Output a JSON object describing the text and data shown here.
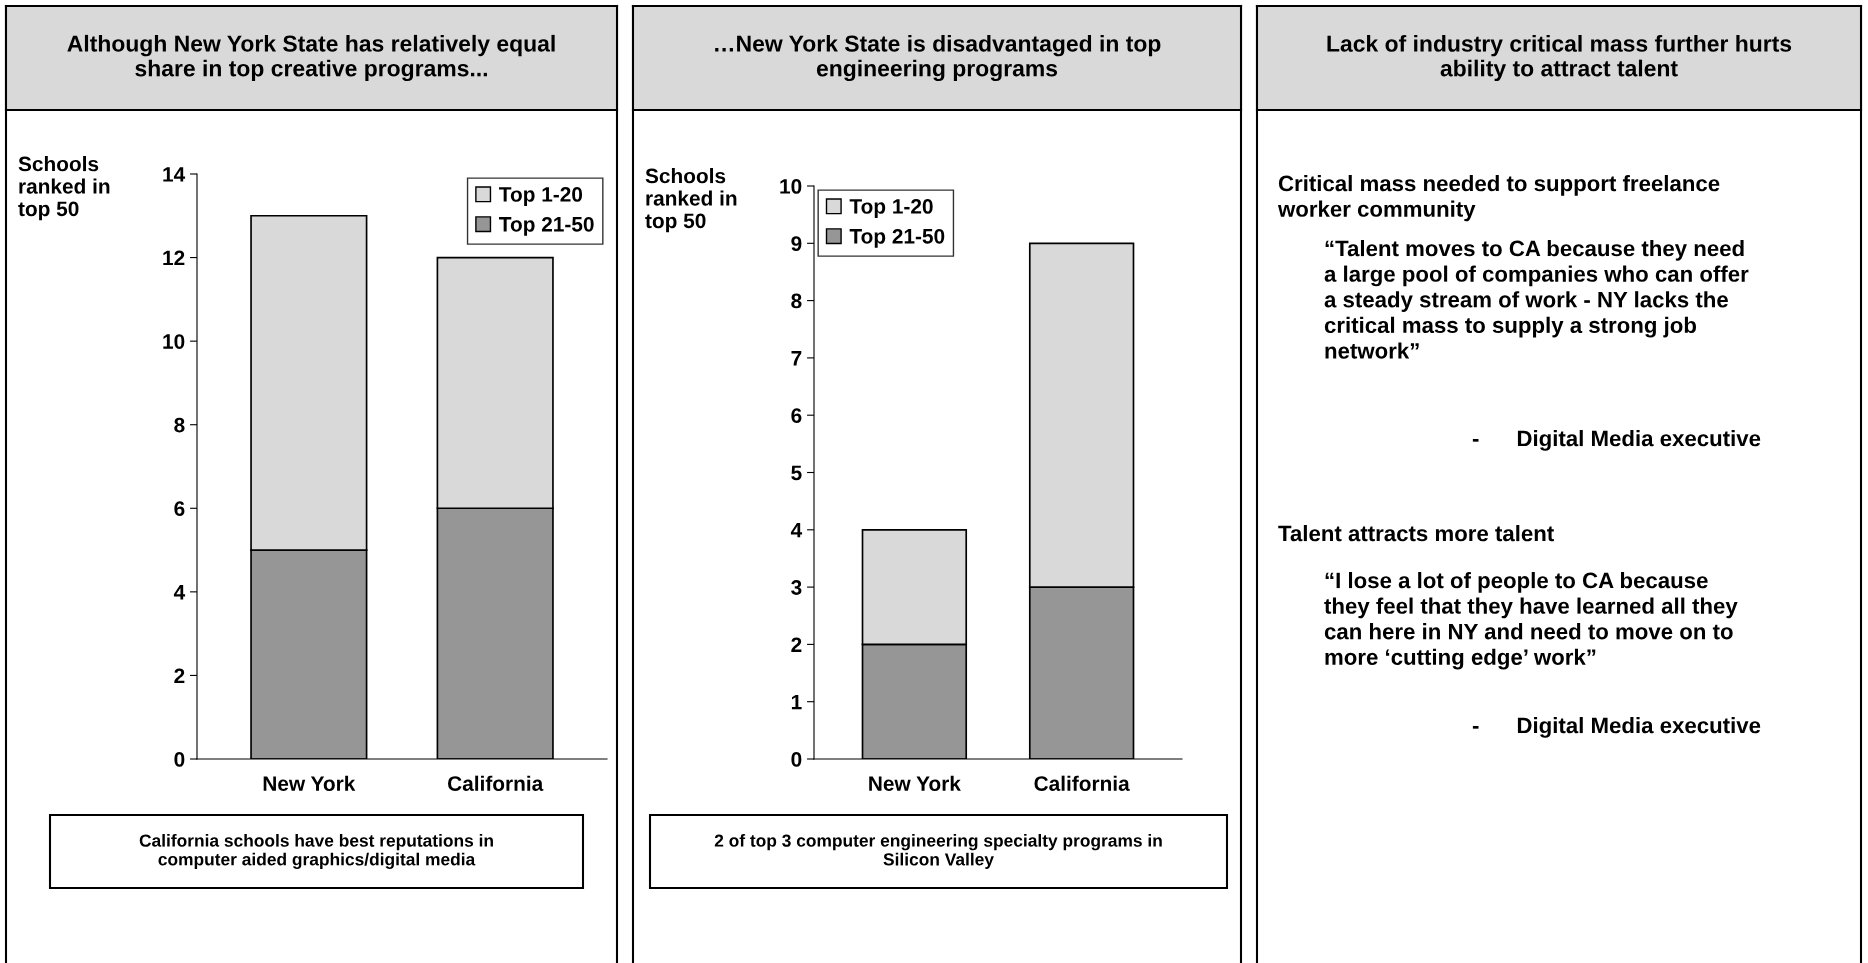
{
  "chart_data": [
    {
      "type": "bar",
      "stacked": true,
      "title": "Although New York State has relatively equal\nshare in top creative programs...",
      "ylabel": "Schools\nranked in\ntop 50",
      "categories": [
        "New York",
        "California"
      ],
      "series": [
        {
          "name": "Top 21-50",
          "color": "#969696",
          "values": [
            5,
            6
          ]
        },
        {
          "name": "Top 1-20",
          "color": "#d9d9d9",
          "values": [
            8,
            6
          ]
        }
      ],
      "ylim": [
        0,
        14
      ],
      "yticks": [
        0,
        2,
        4,
        6,
        8,
        10,
        12,
        14
      ],
      "grid": false,
      "legend": "top right",
      "annotations": [
        "California schools have best reputations in\ncomputer aided graphics/digital media"
      ]
    },
    {
      "type": "bar",
      "stacked": true,
      "title": "…New York State is disadvantaged in top\nengineering programs",
      "ylabel": "Schools\nranked in\ntop 50",
      "categories": [
        "New York",
        "California"
      ],
      "series": [
        {
          "name": "Top 21-50",
          "color": "#969696",
          "values": [
            2,
            3
          ]
        },
        {
          "name": "Top 1-20",
          "color": "#d9d9d9",
          "values": [
            2,
            6
          ]
        }
      ],
      "ylim": [
        0,
        10
      ],
      "yticks": [
        0,
        1,
        2,
        3,
        4,
        5,
        6,
        7,
        8,
        9,
        10
      ],
      "grid": false,
      "legend": "top left",
      "annotations": [
        "2 of top 3 computer engineering specialty programs in\nSilicon Valley"
      ]
    },
    {
      "type": "other",
      "title": "Lack of industry critical mass further hurts\nability to attract talent",
      "annotations": [
        "Critical mass needed to support freelance\nworker community",
        "“Talent moves to CA because they need\na large pool of companies who can offer\na steady stream of work - NY lacks the\ncritical mass to supply a strong job\nnetwork”",
        "-      Digital Media executive",
        "Talent attracts more talent",
        "“I lose a lot of people to CA because\nthey feel that they have learned all they\ncan here in NY and need to move on to\nmore ‘cutting edge’ work”",
        "-      Digital Media executive"
      ]
    }
  ]
}
